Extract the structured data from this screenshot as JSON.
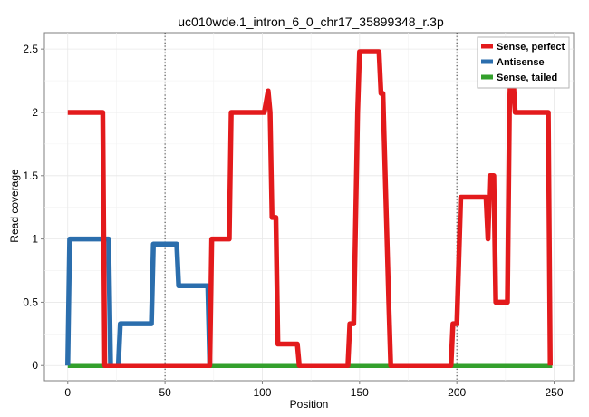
{
  "chart_data": {
    "type": "line",
    "title": "uc010wde.1_intron_6_0_chr17_35899348_r.3p",
    "xlabel": "Position",
    "ylabel": "Read coverage",
    "xlim": [
      -12,
      260
    ],
    "ylim": [
      -0.12,
      2.63
    ],
    "x_ticks": [
      0,
      50,
      100,
      150,
      200,
      250
    ],
    "x_tick_labels": [
      "0",
      "50",
      "100",
      "150",
      "200",
      "250"
    ],
    "y_ticks": [
      0,
      0.5,
      1,
      1.5,
      2,
      2.5
    ],
    "y_tick_labels": [
      "0",
      "0.5",
      "1",
      "1.5",
      "2",
      "2.5"
    ],
    "vlines": [
      50,
      200
    ],
    "grid": true,
    "legend_position": "top-right",
    "series": [
      {
        "name": "Sense, perfect",
        "color": "#e31a1c",
        "points": [
          [
            0,
            2
          ],
          [
            18,
            2
          ],
          [
            19,
            0
          ],
          [
            73,
            0
          ],
          [
            74,
            1
          ],
          [
            83,
            1
          ],
          [
            84,
            2
          ],
          [
            101,
            2
          ],
          [
            103,
            2.17
          ],
          [
            104,
            2
          ],
          [
            105,
            1.17
          ],
          [
            107,
            1.17
          ],
          [
            108,
            0.17
          ],
          [
            118,
            0.17
          ],
          [
            119,
            0
          ],
          [
            144,
            0
          ],
          [
            145,
            0.33
          ],
          [
            147,
            0.33
          ],
          [
            149,
            2
          ],
          [
            150,
            2.48
          ],
          [
            160,
            2.48
          ],
          [
            161,
            2.15
          ],
          [
            162,
            2.15
          ],
          [
            165,
            0.5
          ],
          [
            166,
            0
          ],
          [
            197,
            0
          ],
          [
            198,
            0.33
          ],
          [
            200,
            0.33
          ],
          [
            202,
            1.33
          ],
          [
            212,
            1.33
          ],
          [
            215,
            1.33
          ],
          [
            216,
            1
          ],
          [
            217,
            1.5
          ],
          [
            219,
            1.5
          ],
          [
            220,
            0.5
          ],
          [
            226,
            0.5
          ],
          [
            227,
            2
          ],
          [
            228,
            2.5
          ],
          [
            230,
            2
          ],
          [
            247,
            2
          ],
          [
            248,
            0
          ]
        ]
      },
      {
        "name": "Antisense",
        "color": "#2b6ead",
        "points": [
          [
            0,
            0
          ],
          [
            1,
            1
          ],
          [
            21,
            1
          ],
          [
            22,
            0
          ],
          [
            26,
            0
          ],
          [
            27,
            0.33
          ],
          [
            43,
            0.33
          ],
          [
            44,
            0.96
          ],
          [
            56,
            0.96
          ],
          [
            57,
            0.63
          ],
          [
            72,
            0.63
          ],
          [
            73,
            0
          ]
        ]
      },
      {
        "name": "Sense, tailed",
        "color": "#33a02c",
        "points": [
          [
            0,
            0
          ],
          [
            249,
            0
          ]
        ]
      }
    ]
  }
}
